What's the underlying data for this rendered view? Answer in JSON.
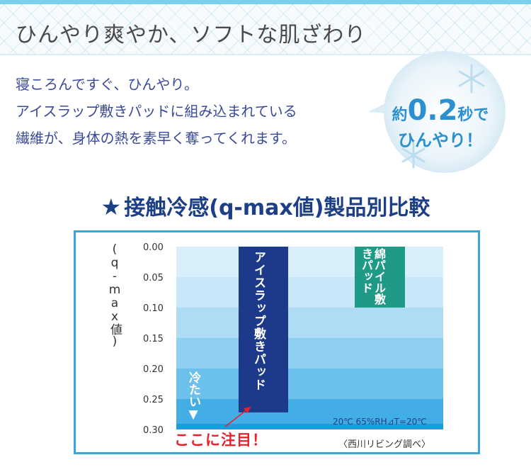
{
  "header": {
    "title": "ひんやり爽やか、ソフトな肌ざわり"
  },
  "intro": {
    "lines": [
      "寝ころんですぐ、ひんやり。",
      "アイスラップ敷きパッドに組み込まれている",
      "繊維が、身体の熱を素早く奪ってくれます。"
    ]
  },
  "bubble": {
    "prefix": "約",
    "value": "0.2",
    "suffix": "秒で",
    "line2": "ひんやり！",
    "icon": "snowflake-icon",
    "accent": "#2b8fd0"
  },
  "chart_title": {
    "star": "★",
    "text": "接触冷感(q-max値)製品別比較"
  },
  "chart_data": {
    "type": "bar",
    "title": "接触冷感(q-max値)製品別比較",
    "ylabel": "(q-max値)",
    "ylim": [
      0.0,
      0.3
    ],
    "y_inverted": true,
    "yticks": [
      "0.00",
      "0.05",
      "0.10",
      "0.15",
      "0.20",
      "0.25",
      "0.30"
    ],
    "categories": [
      "アイスラップ敷きパッド",
      "綿パイル敷きパッド"
    ],
    "values": [
      0.272,
      0.1
    ],
    "colors": [
      "#1d3a8a",
      "#1f9a86"
    ],
    "band_colors": [
      "#d9f0fb",
      "#c6e8f8",
      "#aedcf4",
      "#8fd0f1",
      "#6cc0ec",
      "#43aee5",
      "#1e9bdd"
    ],
    "conditions": "20℃ 65%RH⊿T=20℃",
    "direction_label": "冷たい▼",
    "callout": "ここに注目！",
    "source": "〈西川リビング調べ〉"
  }
}
